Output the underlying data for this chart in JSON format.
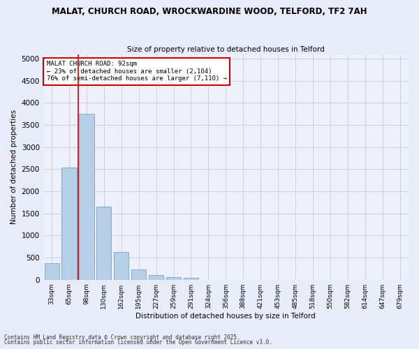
{
  "title_line1": "MALAT, CHURCH ROAD, WROCKWARDINE WOOD, TELFORD, TF2 7AH",
  "title_line2": "Size of property relative to detached houses in Telford",
  "xlabel": "Distribution of detached houses by size in Telford",
  "ylabel": "Number of detached properties",
  "categories": [
    "33sqm",
    "65sqm",
    "98sqm",
    "130sqm",
    "162sqm",
    "195sqm",
    "227sqm",
    "259sqm",
    "291sqm",
    "324sqm",
    "356sqm",
    "388sqm",
    "421sqm",
    "453sqm",
    "485sqm",
    "518sqm",
    "550sqm",
    "582sqm",
    "614sqm",
    "647sqm",
    "679sqm"
  ],
  "values": [
    380,
    2530,
    3760,
    1650,
    620,
    240,
    105,
    60,
    40,
    0,
    0,
    0,
    0,
    0,
    0,
    0,
    0,
    0,
    0,
    0,
    0
  ],
  "bar_color": "#b8cfe8",
  "bar_edge_color": "#6699bb",
  "vline_x": 1.5,
  "vline_color": "#cc0000",
  "annotation_title": "MALAT CHURCH ROAD: 92sqm",
  "annotation_line1": "← 23% of detached houses are smaller (2,104)",
  "annotation_line2": "76% of semi-detached houses are larger (7,110) →",
  "annotation_box_color": "#cc0000",
  "ylim": [
    0,
    5100
  ],
  "yticks": [
    0,
    500,
    1000,
    1500,
    2000,
    2500,
    3000,
    3500,
    4000,
    4500,
    5000
  ],
  "footer_line1": "Contains HM Land Registry data © Crown copyright and database right 2025.",
  "footer_line2": "Contains public sector information licensed under the Open Government Licence v3.0.",
  "bg_color": "#e8ecf8",
  "plot_bg_color": "#eef1fa",
  "grid_color": "#c8cce0"
}
